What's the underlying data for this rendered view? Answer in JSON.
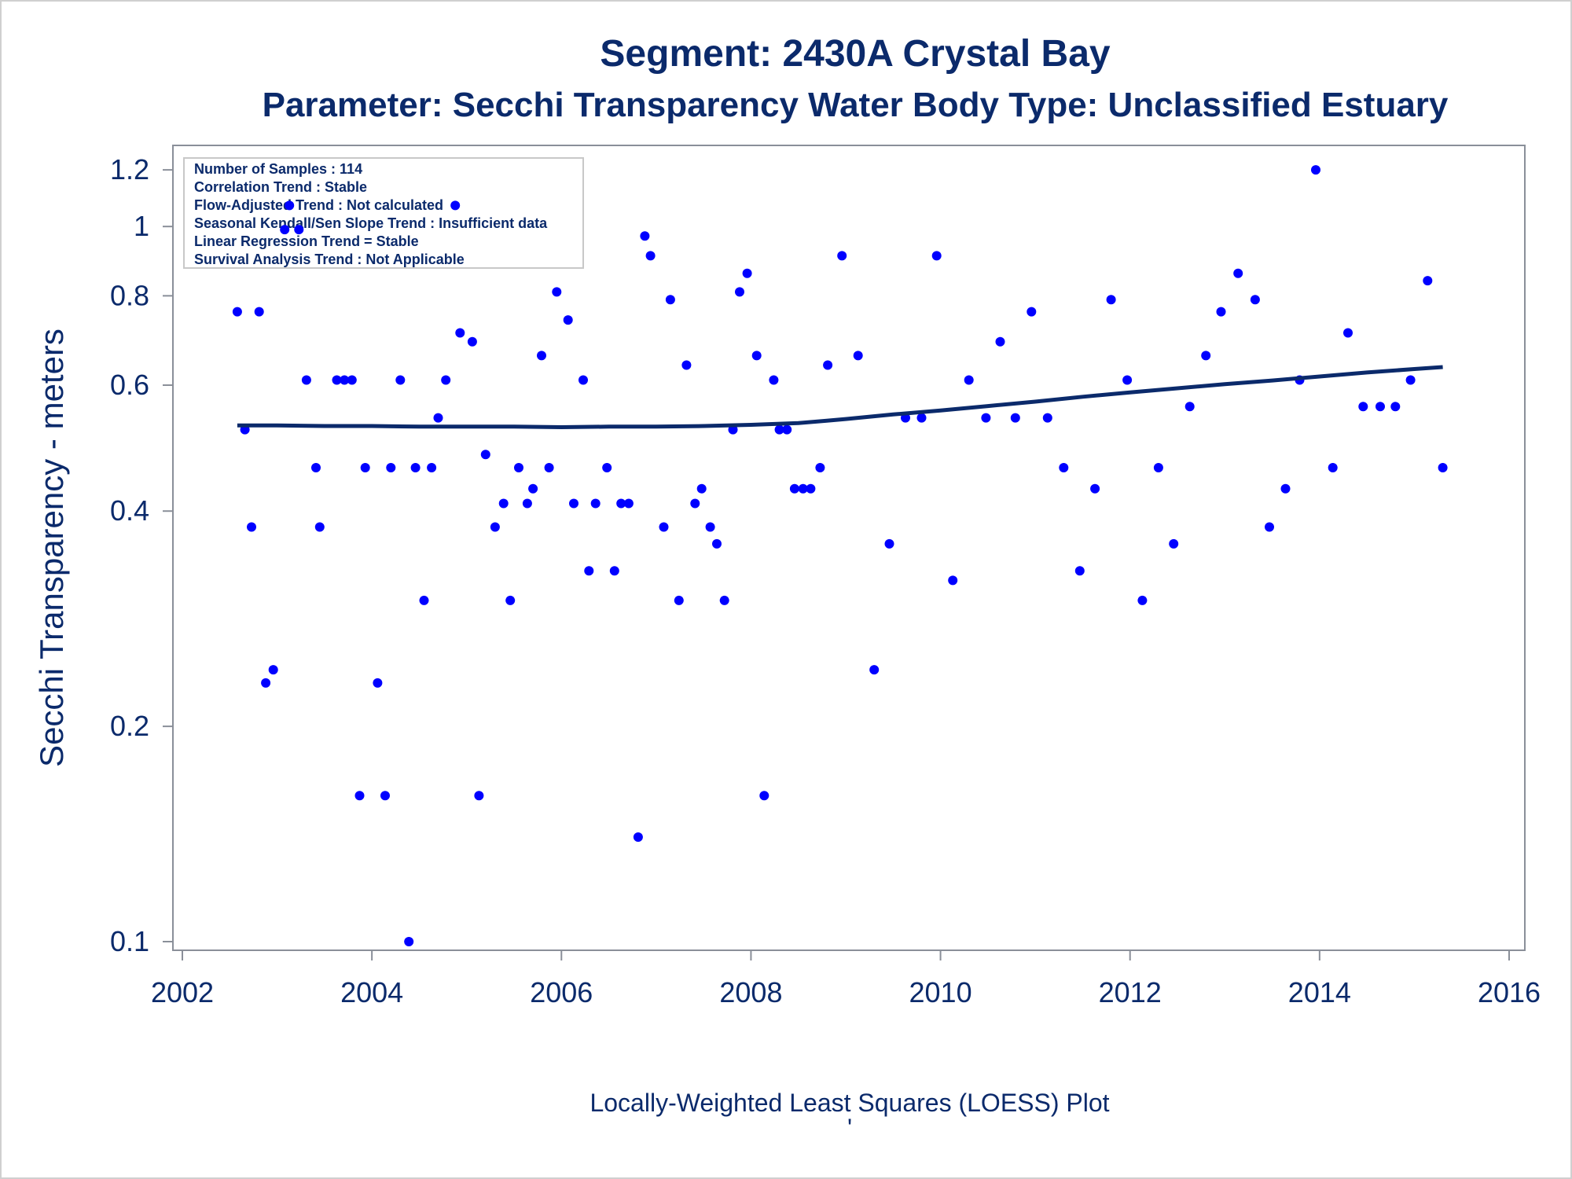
{
  "chart_data": {
    "type": "scatter",
    "title": "Segment: 2430A  Crystal Bay",
    "subtitle": "Parameter: Secchi Transparency   Water Body Type: Unclassified Estuary",
    "xlabel": "",
    "ylabel": "Secchi Transparency - meters",
    "footnote": "Locally-Weighted Least Squares (LOESS) Plot",
    "footnote_mark": "'",
    "y_scale": "log",
    "xlim": [
      2002,
      2016
    ],
    "ylim": [
      0.1,
      1.25
    ],
    "x_ticks": [
      "2002",
      "2004",
      "2006",
      "2008",
      "2010",
      "2012",
      "2014",
      "2016"
    ],
    "y_ticks": [
      "0.1",
      "0.2",
      "0.4",
      "0.6",
      "0.8",
      "1",
      "1.2"
    ],
    "grid": false,
    "legend_position": "top-left",
    "annotations": [
      "Number of Samples : 114",
      "Correlation Trend : Stable",
      "Flow-Adjusted Trend : Not calculated",
      "Seasonal Kendall/Sen Slope Trend : Insufficient data",
      "Linear Regression Trend = Stable",
      "Survival Analysis Trend : Not Applicable"
    ],
    "point_color": "#0000ff",
    "line_color": "#0b2a6b",
    "series": [
      {
        "kind": "points",
        "x": [
          2002.58,
          2002.66,
          2002.73,
          2002.81,
          2002.88,
          2002.96,
          2003.08,
          2003.13,
          2003.23,
          2003.31,
          2003.41,
          2003.45,
          2003.63,
          2003.71,
          2003.79,
          2003.87,
          2003.93,
          2004.06,
          2004.14,
          2004.2,
          2004.3,
          2004.39,
          2004.46,
          2004.55,
          2004.63,
          2004.7,
          2004.78,
          2004.88,
          2004.93,
          2005.06,
          2005.13,
          2005.2,
          2005.3,
          2005.39,
          2005.46,
          2005.55,
          2005.64,
          2005.7,
          2005.79,
          2005.87,
          2005.95,
          2006.07,
          2006.13,
          2006.23,
          2006.29,
          2006.36,
          2006.48,
          2006.56,
          2006.63,
          2006.71,
          2006.81,
          2006.88,
          2006.94,
          2007.08,
          2007.15,
          2007.24,
          2007.32,
          2007.41,
          2007.48,
          2007.57,
          2007.64,
          2007.72,
          2007.81,
          2007.88,
          2007.96,
          2008.06,
          2008.14,
          2008.24,
          2008.3,
          2008.38,
          2008.46,
          2008.55,
          2008.63,
          2008.73,
          2008.81,
          2008.96,
          2009.13,
          2009.3,
          2009.46,
          2009.63,
          2009.8,
          2009.96,
          2010.13,
          2010.3,
          2010.48,
          2010.63,
          2010.79,
          2010.96,
          2011.13,
          2011.3,
          2011.47,
          2011.63,
          2011.8,
          2011.97,
          2012.13,
          2012.3,
          2012.46,
          2012.63,
          2012.8,
          2012.96,
          2013.14,
          2013.32,
          2013.47,
          2013.64,
          2013.79,
          2013.96,
          2014.14,
          2014.3,
          2014.46,
          2014.64,
          2014.8,
          2014.96,
          2015.14,
          2015.3
        ],
        "y": [
          0.76,
          0.52,
          0.38,
          0.76,
          0.23,
          0.24,
          0.99,
          1.07,
          0.99,
          0.61,
          0.46,
          0.38,
          0.61,
          0.61,
          0.61,
          0.16,
          0.46,
          0.23,
          0.16,
          0.46,
          0.61,
          0.1,
          0.46,
          0.3,
          0.46,
          0.54,
          0.61,
          1.07,
          0.71,
          0.69,
          0.16,
          0.48,
          0.38,
          0.41,
          0.3,
          0.46,
          0.41,
          0.43,
          0.66,
          0.46,
          0.81,
          0.74,
          0.41,
          0.61,
          0.33,
          0.41,
          0.46,
          0.33,
          0.41,
          0.41,
          0.14,
          0.97,
          0.91,
          0.38,
          0.79,
          0.3,
          0.64,
          0.41,
          0.43,
          0.38,
          0.36,
          0.3,
          0.52,
          0.81,
          0.86,
          0.66,
          0.16,
          0.61,
          0.52,
          0.52,
          0.43,
          0.43,
          0.43,
          0.46,
          0.64,
          0.91,
          0.66,
          0.24,
          0.36,
          0.54,
          0.54,
          0.91,
          0.32,
          0.61,
          0.54,
          0.69,
          0.54,
          0.76,
          0.54,
          0.46,
          0.33,
          0.43,
          0.79,
          0.61,
          0.3,
          0.46,
          0.36,
          0.56,
          0.66,
          0.76,
          0.86,
          0.79,
          0.38,
          0.43,
          0.61,
          1.2,
          0.46,
          0.71,
          0.56,
          0.56,
          0.56,
          0.61,
          0.84,
          0.46
        ]
      },
      {
        "kind": "loess",
        "x": [
          2002.58,
          2003.0,
          2003.5,
          2004.0,
          2004.5,
          2005.0,
          2005.5,
          2006.0,
          2006.5,
          2007.0,
          2007.5,
          2008.0,
          2008.5,
          2008.8,
          2009.0,
          2009.5,
          2010.0,
          2010.5,
          2011.0,
          2011.5,
          2012.0,
          2012.5,
          2013.0,
          2013.5,
          2014.0,
          2014.5,
          2015.0,
          2015.3
        ],
        "y": [
          0.527,
          0.527,
          0.526,
          0.526,
          0.525,
          0.525,
          0.525,
          0.524,
          0.525,
          0.525,
          0.526,
          0.528,
          0.531,
          0.535,
          0.538,
          0.546,
          0.553,
          0.561,
          0.569,
          0.578,
          0.586,
          0.594,
          0.602,
          0.609,
          0.617,
          0.625,
          0.632,
          0.636
        ]
      }
    ]
  }
}
